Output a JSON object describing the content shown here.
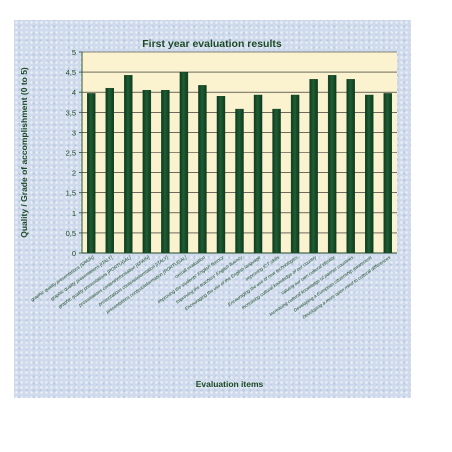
{
  "chart_data": {
    "type": "bar",
    "title": "First year evaluation results",
    "xlabel": "Evaluation items",
    "ylabel": "Quality / Grade of accomplishment (0 to 5)",
    "ylim": [
      0,
      5
    ],
    "yticks": [
      "0",
      "0,5",
      "1",
      "1,5",
      "2",
      "2,5",
      "3",
      "3,5",
      "4",
      "4,5",
      "5"
    ],
    "grid": true,
    "legend": "none",
    "categories": [
      "graphic quality presentations [SPAIN]",
      "graphic quality presentations [ITALY]",
      "graphic quality presentations [PORTUGAL]",
      "presentations content/information [SPAIN]",
      "presentations content/information [ITALY]",
      "presentations content/information [PORTUGAL]",
      "overall evaluation",
      "Improving the students' English fluency",
      "Improving the teachers' English fluency",
      "Encouraging the use of the English language",
      "Improving ICT skills",
      "Encouraging the use of new technologies",
      "Increasing cultural knowledge of our country",
      "Valuing our own cultural identity",
      "Increasing cultural knowledge of partner countries",
      "Developing a European citizenship awareness",
      "Developing a more open mind to cultural differences"
    ],
    "values": [
      3.97,
      4.1,
      4.42,
      4.05,
      4.05,
      4.5,
      4.17,
      3.9,
      3.58,
      3.93,
      3.58,
      3.93,
      4.32,
      4.42,
      4.32,
      3.93,
      3.97
    ],
    "colors": {
      "bar": "#1f5e34",
      "bar_dark": "#0e3a1d",
      "plot_bg": "#fbf2cf",
      "title": "#1d4a26",
      "axis": "#1d4a26",
      "grid": "#1a1a1a"
    }
  }
}
